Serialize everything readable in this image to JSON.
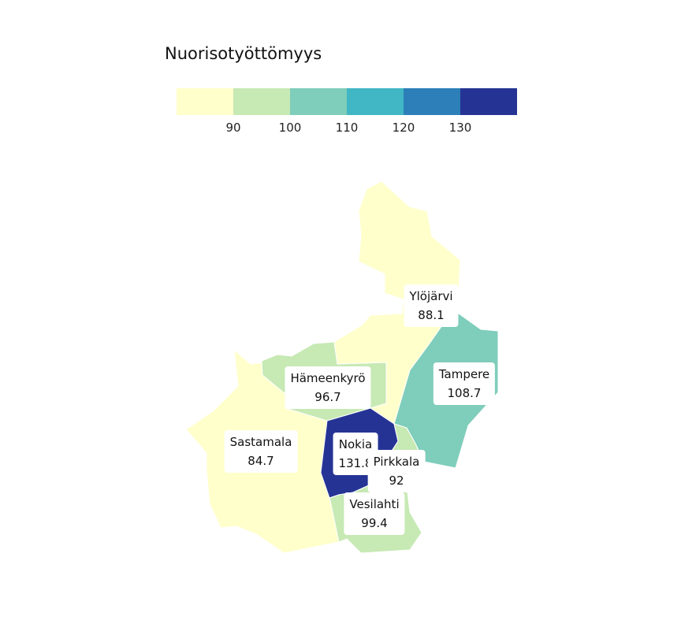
{
  "legend": {
    "title": "Nuorisotyöttömyys",
    "colors": [
      "#ffffcc",
      "#c7e9b4",
      "#7fcdbb",
      "#41b6c4",
      "#2c7fb8",
      "#253494"
    ],
    "ticks": [
      "90",
      "100",
      "110",
      "120",
      "130"
    ]
  },
  "regions": [
    {
      "id": "ylojarvi",
      "name": "Ylöjärvi",
      "value": "88.1",
      "color": "#ffffcc"
    },
    {
      "id": "tampere",
      "name": "Tampere",
      "value": "108.7",
      "color": "#7fcdbb"
    },
    {
      "id": "hameenkyro",
      "name": "Hämeenkyrö",
      "value": "96.7",
      "color": "#c7e9b4"
    },
    {
      "id": "sastamala",
      "name": "Sastamala",
      "value": "84.7",
      "color": "#ffffcc"
    },
    {
      "id": "nokia",
      "name": "Nokia",
      "value": "131.8",
      "color": "#253494"
    },
    {
      "id": "pirkkala",
      "name": "Pirkkala",
      "value": "92",
      "color": "#c7e9b4"
    },
    {
      "id": "vesilahti",
      "name": "Vesilahti",
      "value": "99.4",
      "color": "#c7e9b4"
    }
  ]
}
